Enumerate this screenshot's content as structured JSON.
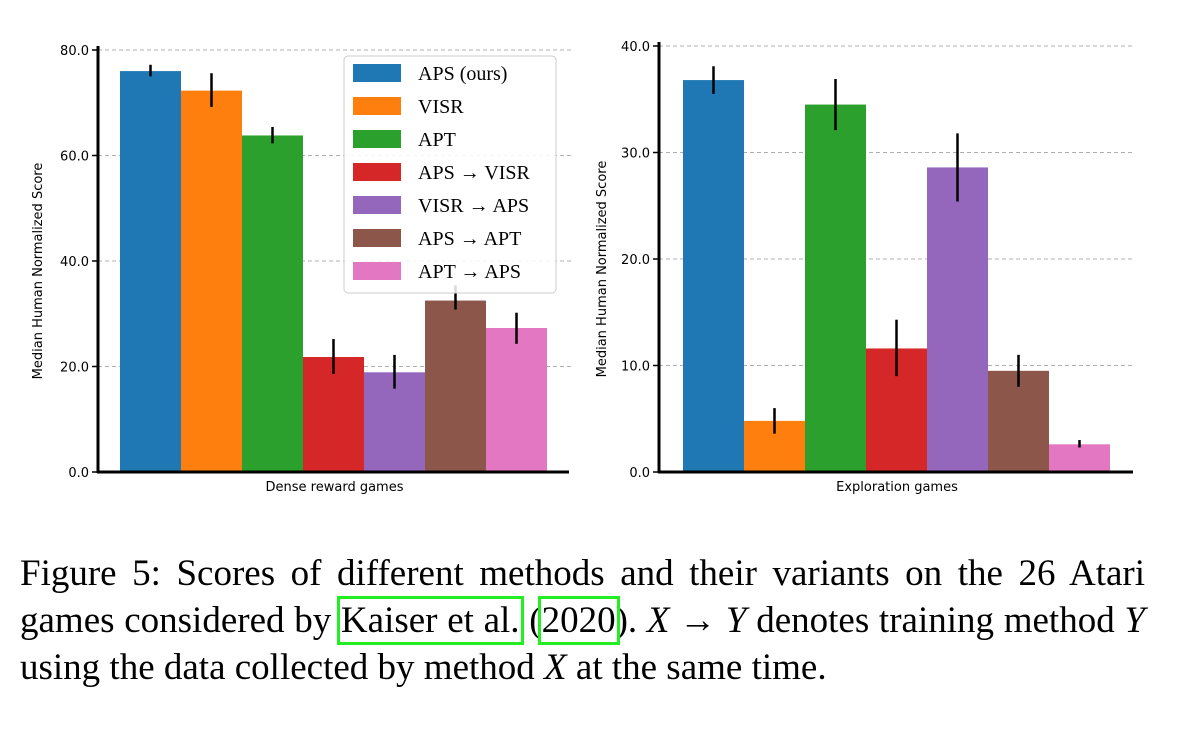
{
  "chart_data": [
    {
      "type": "bar",
      "xlabel": "Dense reward games",
      "ylabel": "Median Human Normalized Score",
      "ylim": [
        0,
        80
      ],
      "yticks": [
        "0.0",
        "20.0",
        "40.0",
        "60.0",
        "80.0"
      ],
      "grid": "horizontal dashed",
      "legend_position": "top-right",
      "series": [
        {
          "name": "APS (ours)",
          "value": 76.0,
          "error": [
            75.0,
            77.2
          ],
          "color": "#1f77b4"
        },
        {
          "name": "VISR",
          "value": 72.3,
          "error": [
            69.2,
            75.6
          ],
          "color": "#ff7f0e"
        },
        {
          "name": "APT",
          "value": 63.8,
          "error": [
            62.3,
            65.4
          ],
          "color": "#2ca02c"
        },
        {
          "name": "APS → VISR",
          "value": 21.8,
          "error": [
            18.6,
            25.2
          ],
          "color": "#d62728"
        },
        {
          "name": "VISR → APS",
          "value": 18.9,
          "error": [
            15.8,
            22.2
          ],
          "color": "#9467bd"
        },
        {
          "name": "APS → APT",
          "value": 32.5,
          "error": [
            30.8,
            35.4
          ],
          "color": "#8c564b"
        },
        {
          "name": "APT → APS",
          "value": 27.3,
          "error": [
            24.3,
            30.2
          ],
          "color": "#e377c2"
        }
      ]
    },
    {
      "type": "bar",
      "xlabel": "Exploration games",
      "ylabel": "Median Human Normalized Score",
      "ylim": [
        0,
        40
      ],
      "yticks": [
        "0.0",
        "10.0",
        "20.0",
        "30.0",
        "40.0"
      ],
      "grid": "horizontal dashed",
      "series": [
        {
          "name": "APS (ours)",
          "value": 36.8,
          "error": [
            35.5,
            38.1
          ],
          "color": "#1f77b4"
        },
        {
          "name": "VISR",
          "value": 4.8,
          "error": [
            3.6,
            6.0
          ],
          "color": "#ff7f0e"
        },
        {
          "name": "APT",
          "value": 34.5,
          "error": [
            32.1,
            36.9
          ],
          "color": "#2ca02c"
        },
        {
          "name": "APS → VISR",
          "value": 11.6,
          "error": [
            9.0,
            14.3
          ],
          "color": "#d62728"
        },
        {
          "name": "VISR → APS",
          "value": 28.6,
          "error": [
            25.4,
            31.8
          ],
          "color": "#9467bd"
        },
        {
          "name": "APS → APT",
          "value": 9.5,
          "error": [
            8.0,
            11.0
          ],
          "color": "#8c564b"
        },
        {
          "name": "APT → APS",
          "value": 2.6,
          "error": [
            2.3,
            3.0
          ],
          "color": "#e377c2"
        }
      ]
    }
  ],
  "caption": {
    "prefix": "Figure 5: Scores of different methods and their variants on the 26 Atari games considered by ",
    "cite_author": "Kaiser et al.",
    "cite_open": " (",
    "cite_year": "2020",
    "cite_close": "). ",
    "var_x": "X",
    "arrow": " → ",
    "var_y": "Y",
    "mid1": " denotes training method ",
    "var_y2": "Y",
    "mid2": " using the data collected by method ",
    "var_x2": "X",
    "suffix": " at the same time."
  }
}
